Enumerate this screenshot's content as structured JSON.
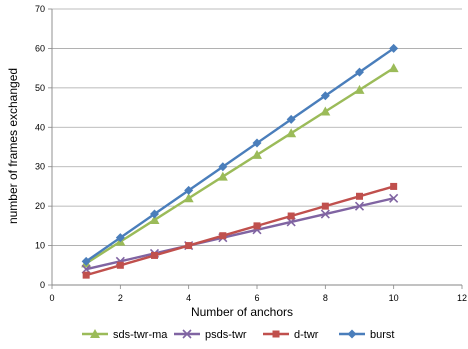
{
  "chart_data": {
    "type": "line",
    "title": "",
    "xlabel": "Number of anchors",
    "ylabel": "number of frames exchanged",
    "xlim": [
      0,
      12
    ],
    "ylim": [
      0,
      70
    ],
    "xticks": [
      0,
      2,
      4,
      6,
      8,
      10,
      12
    ],
    "yticks": [
      0,
      10,
      20,
      30,
      40,
      50,
      60,
      70
    ],
    "grid": "horizontal",
    "legend_position": "bottom",
    "x": [
      1,
      2,
      3,
      4,
      5,
      6,
      7,
      8,
      9,
      10
    ],
    "series": [
      {
        "name": "sds-twr-ma",
        "color": "#9bbb59",
        "marker": "triangle",
        "values": [
          5.5,
          11,
          16.5,
          22,
          27.5,
          33,
          38.5,
          44,
          49.5,
          55
        ]
      },
      {
        "name": "psds-twr",
        "color": "#8064a2",
        "marker": "x",
        "values": [
          4,
          6,
          8,
          10,
          12,
          14,
          16,
          18,
          20,
          22
        ]
      },
      {
        "name": "d-twr",
        "color": "#c0504d",
        "marker": "square",
        "values": [
          2.5,
          5,
          7.5,
          10,
          12.5,
          15,
          17.5,
          20,
          22.5,
          25
        ]
      },
      {
        "name": "burst",
        "color": "#4a7ebb",
        "marker": "diamond",
        "values": [
          6,
          12,
          18,
          24,
          30,
          36,
          42,
          48,
          54,
          60
        ]
      }
    ]
  }
}
